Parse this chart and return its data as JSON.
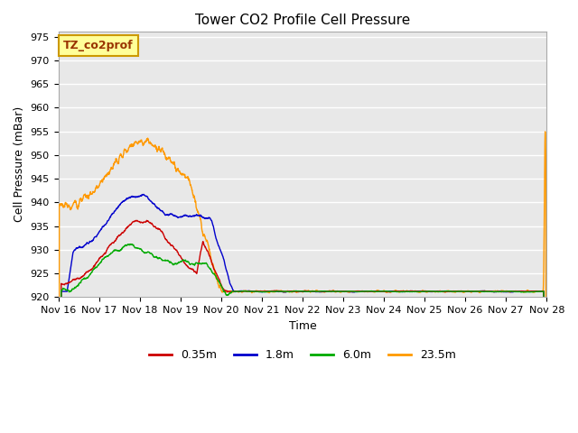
{
  "title": "Tower CO2 Profile Cell Pressure",
  "xlabel": "Time",
  "ylabel": "Cell Pressure (mBar)",
  "ylim": [
    920,
    976
  ],
  "yticks": [
    920,
    925,
    930,
    935,
    940,
    945,
    950,
    955,
    960,
    965,
    970,
    975
  ],
  "xtick_labels": [
    "Nov 16",
    "Nov 17",
    "Nov 18",
    "Nov 19",
    "Nov 20",
    "Nov 21",
    "Nov 22",
    "Nov 23",
    "Nov 24",
    "Nov 25",
    "Nov 26",
    "Nov 27",
    "Nov 28"
  ],
  "legend_label": "TZ_co2prof",
  "series_labels": [
    "0.35m",
    "1.8m",
    "6.0m",
    "23.5m"
  ],
  "series_colors": [
    "#cc0000",
    "#0000cc",
    "#00aa00",
    "#ff9900"
  ],
  "fig_bg_color": "#ffffff",
  "plot_bg_color": "#e8e8e8",
  "grid_color": "#ffffff",
  "title_fontsize": 11,
  "axis_fontsize": 9,
  "tick_fontsize": 8,
  "legend_box_facecolor": "#ffff99",
  "legend_box_edgecolor": "#cc9900",
  "legend_text_color": "#993300"
}
